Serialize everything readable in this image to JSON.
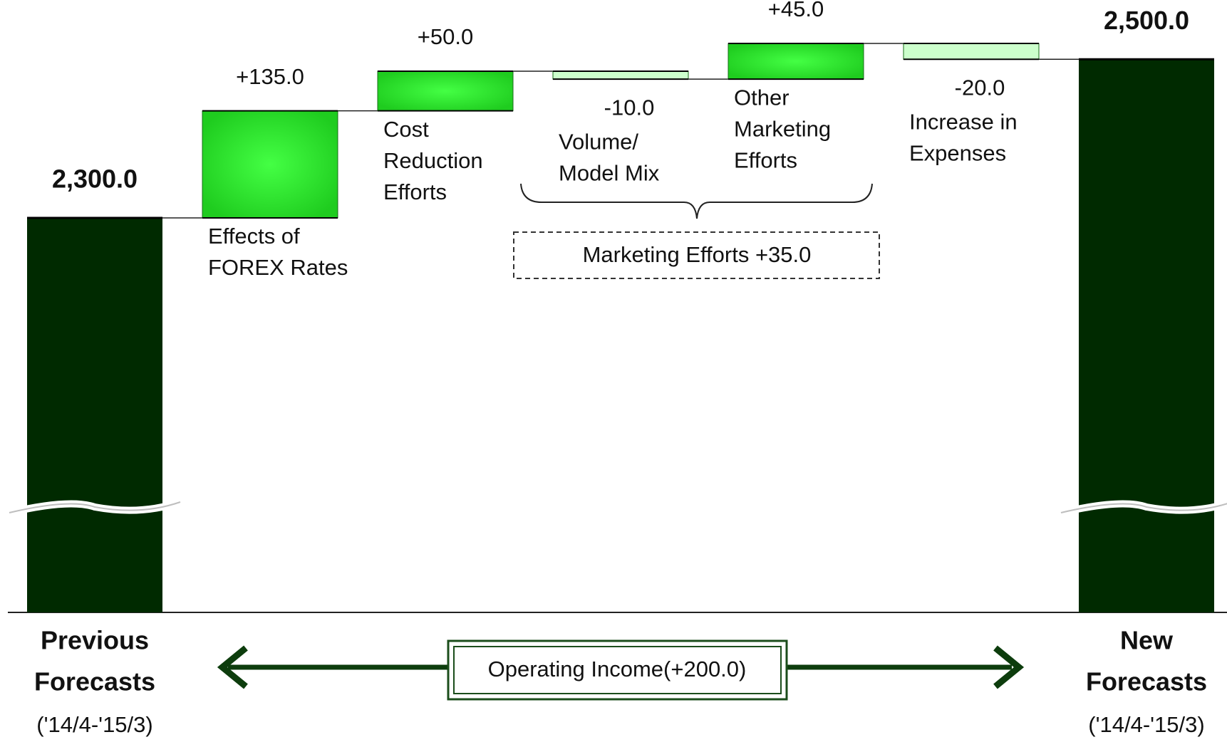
{
  "chart_data": {
    "type": "waterfall",
    "categories": [
      [
        "Previous",
        "Forecasts"
      ],
      [
        "Effects of",
        "FOREX Rates"
      ],
      [
        "Cost",
        "Reduction",
        "Efforts"
      ],
      [
        "Volume/",
        "Model Mix"
      ],
      [
        "Other",
        "Marketing",
        "Efforts"
      ],
      [
        "Increase in",
        "Expenses"
      ],
      [
        "New",
        "Forecasts"
      ]
    ],
    "period": "('14/4-'15/3)",
    "values": [
      2300,
      135,
      50,
      -10,
      45,
      -20,
      2500
    ],
    "value_labels": [
      "2,300.0",
      "+135.0",
      "+50.0",
      "-10.0",
      "+45.0",
      "-20.0",
      "2,500.0"
    ],
    "measure": [
      "absolute",
      "relative",
      "relative",
      "relative",
      "relative",
      "relative",
      "absolute"
    ],
    "colors": {
      "total": "#002a00",
      "increase": "#22dd22",
      "decrease": "#ccffcc"
    },
    "annotations": {
      "group": "Marketing Efforts +35.0",
      "total_change": "Operating Income(+200.0)"
    }
  }
}
